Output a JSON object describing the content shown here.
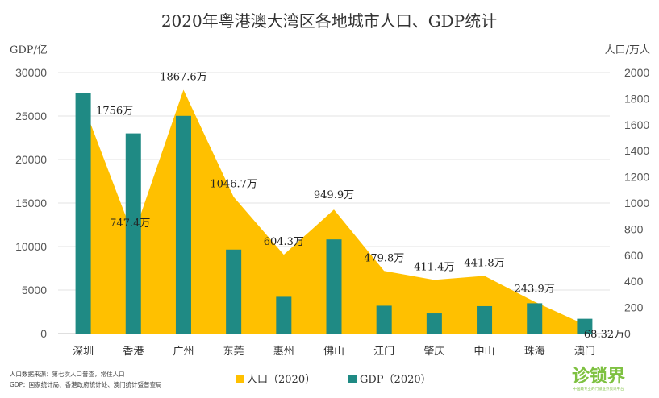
{
  "chart_data": {
    "type": "bar+area",
    "title": "2020年粤港澳大湾区各地城市人口、GDP统计",
    "categories": [
      "深圳",
      "香港",
      "广州",
      "东莞",
      "惠州",
      "佛山",
      "江门",
      "肇庆",
      "中山",
      "珠海",
      "澳门"
    ],
    "series": [
      {
        "name": "人口（2020）",
        "type": "area",
        "axis": "right",
        "color": "#ffc000",
        "values": [
          1756,
          747.4,
          1867.6,
          1046.7,
          604.3,
          949.9,
          479.8,
          411.4,
          441.8,
          243.9,
          68.32
        ],
        "labels": [
          "1756万",
          "747.4万",
          "1867.6万",
          "1046.7万",
          "604.3万",
          "949.9万",
          "479.8万",
          "411.4万",
          "441.8万",
          "243.9万",
          "68.32万"
        ]
      },
      {
        "name": "GDP（2020）",
        "type": "bar",
        "axis": "left",
        "color": "#1f8a84",
        "values": [
          27670,
          23000,
          25019,
          9650,
          4222,
          10816,
          3201,
          2312,
          3152,
          3482,
          1700
        ]
      }
    ],
    "y_left": {
      "unit": "GDP/亿",
      "ylim": [
        0,
        30000
      ],
      "ticks": [
        "0",
        "5000",
        "10000",
        "15000",
        "20000",
        "25000",
        "30000"
      ]
    },
    "y_right": {
      "unit": "人口/万人",
      "ylim": [
        0,
        2000
      ],
      "ticks": [
        "0",
        "200",
        "400",
        "600",
        "800",
        "1000",
        "1200",
        "1400",
        "1600",
        "1800",
        "2000"
      ]
    },
    "grid": true,
    "legend_position": "bottom"
  },
  "legend": {
    "population": "人口（2020）",
    "gdp": "GDP（2020）"
  },
  "source_notes": [
    "人口数据来源：第七次人口普查，常住人口",
    "GDP：国家统计局、香港政府统计处、澳门统计暨普查局"
  ],
  "logo": {
    "text": "诊锁界",
    "sub": "中国最专业的门锁业界资讯平台"
  }
}
